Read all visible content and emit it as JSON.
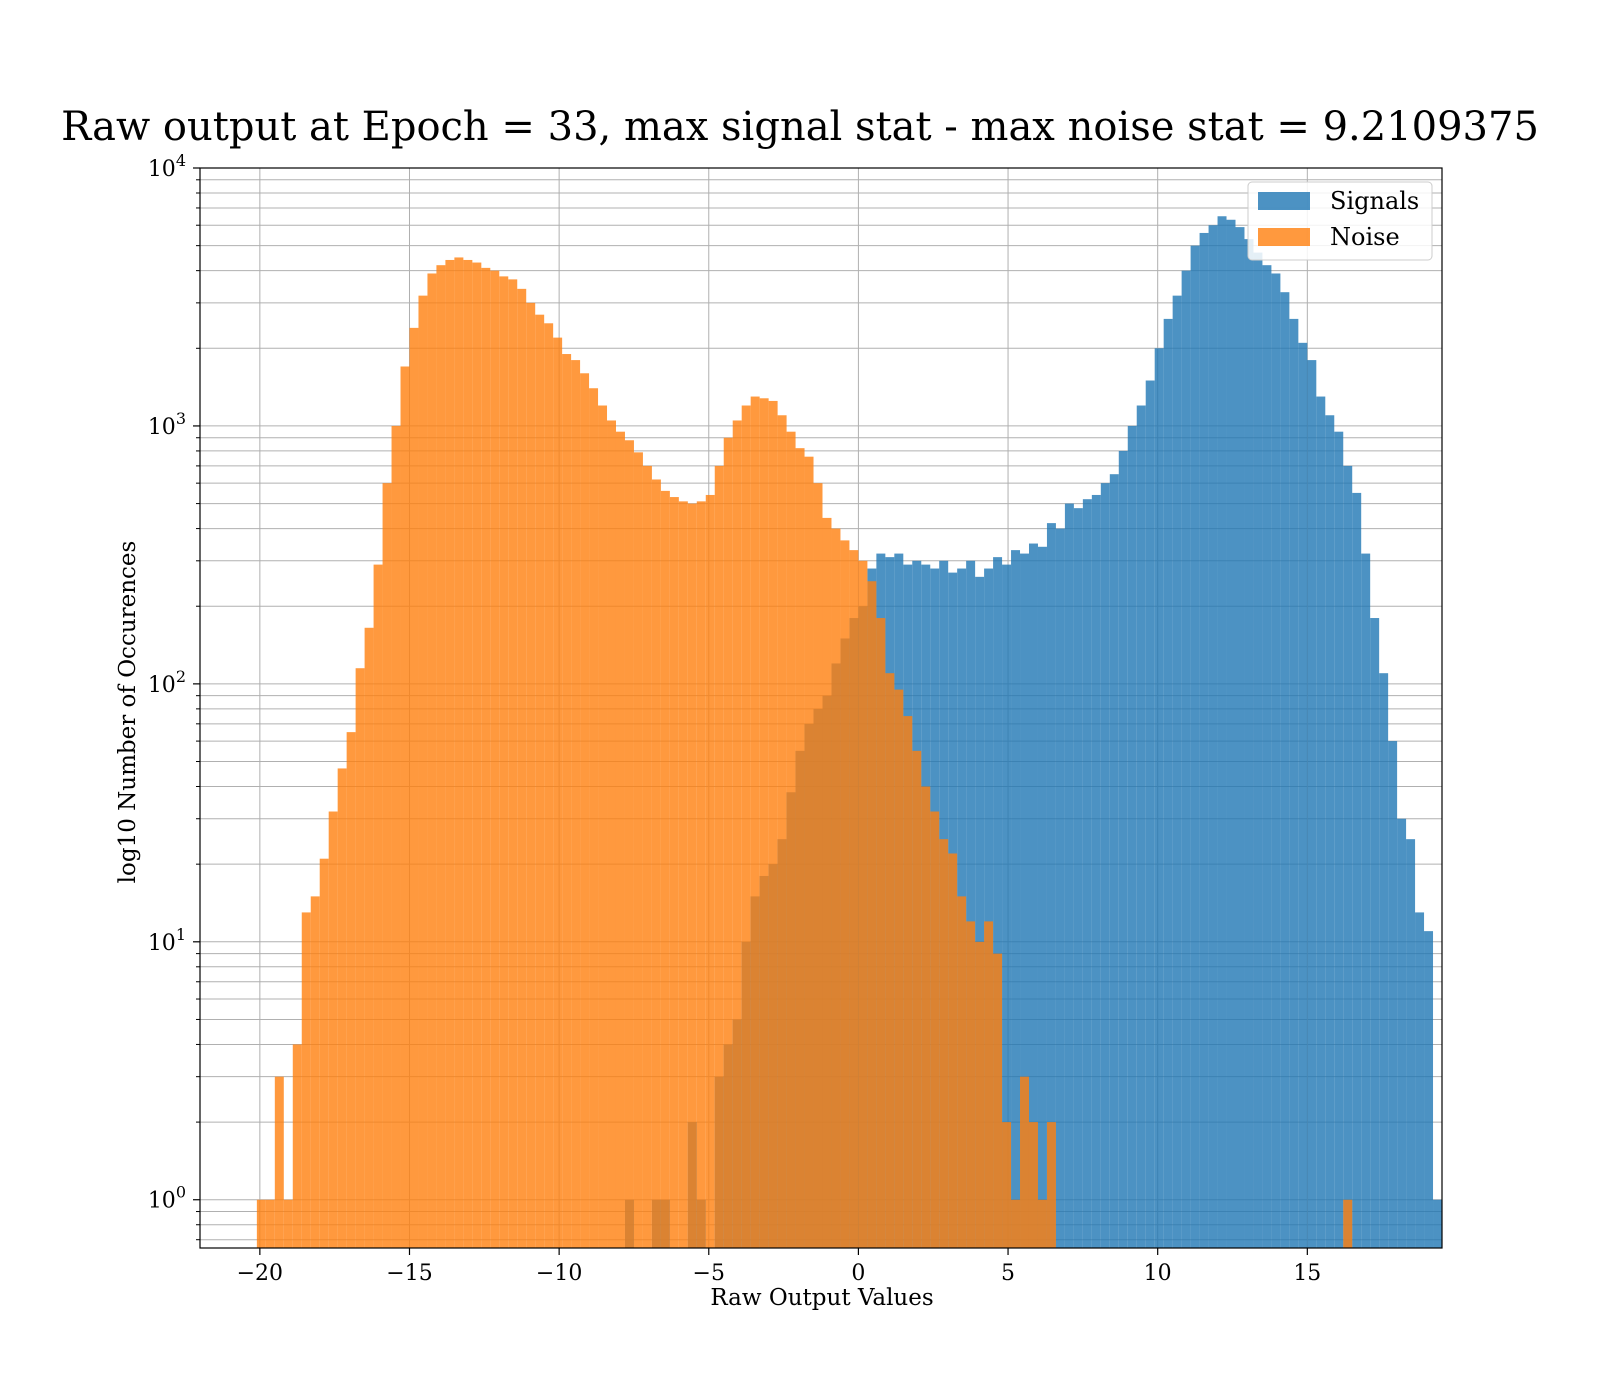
{
  "chart_data": {
    "type": "bar",
    "title": "Raw output at Epoch = 33, max signal stat - max noise stat = 9.2109375",
    "xlabel": "Raw Output Values",
    "ylabel": "log10 Number of Occurences",
    "xlim": [
      -22,
      19.5
    ],
    "ylim": [
      0.65,
      10000
    ],
    "yscale": "log",
    "grid": true,
    "legend": "top-right",
    "x_ticks": [
      -20,
      -15,
      -10,
      -5,
      0,
      5,
      10,
      15
    ],
    "x_tick_labels": [
      "−20",
      "−15",
      "−10",
      "−5",
      "0",
      "5",
      "10",
      "15"
    ],
    "y_ticks": [
      1,
      10,
      100,
      1000,
      10000
    ],
    "y_tick_bases": [
      "10",
      "10",
      "10",
      "10",
      "10"
    ],
    "y_tick_exponents": [
      "0",
      "1",
      "2",
      "3",
      "4"
    ],
    "series": [
      {
        "name": "Signals",
        "color": "#1f77b4",
        "bin_start": -7.8,
        "bin_width": 0.3,
        "counts": [
          1,
          0,
          0,
          1,
          1,
          0,
          0,
          2,
          1,
          0,
          3,
          4,
          5,
          10,
          15,
          18,
          20,
          25,
          38,
          55,
          70,
          80,
          90,
          120,
          150,
          180,
          200,
          280,
          320,
          310,
          320,
          290,
          300,
          290,
          280,
          300,
          270,
          280,
          300,
          260,
          280,
          310,
          290,
          330,
          320,
          350,
          340,
          420,
          400,
          500,
          480,
          520,
          540,
          600,
          650,
          800,
          1000,
          1200,
          1500,
          2000,
          2600,
          3200,
          4000,
          5000,
          5600,
          6000,
          6500,
          6300,
          5900,
          5300,
          4700,
          4200,
          3900,
          3300,
          2600,
          2100,
          1800,
          1300,
          1100,
          950,
          700,
          550,
          320,
          180,
          110,
          60,
          30,
          25,
          13,
          11,
          1
        ]
      },
      {
        "name": "Noise",
        "color": "#ff7f0e",
        "bin_start": -20.1,
        "bin_width": 0.3,
        "counts": [
          1,
          1,
          3,
          1,
          4,
          13,
          15,
          21,
          32,
          47,
          65,
          115,
          165,
          290,
          600,
          1000,
          1700,
          2400,
          3200,
          3900,
          4200,
          4400,
          4500,
          4400,
          4300,
          4100,
          4000,
          3800,
          3700,
          3400,
          3000,
          2700,
          2500,
          2200,
          1900,
          1800,
          1600,
          1400,
          1200,
          1050,
          950,
          880,
          790,
          700,
          620,
          560,
          530,
          510,
          500,
          510,
          540,
          700,
          900,
          1050,
          1200,
          1300,
          1280,
          1250,
          1100,
          950,
          820,
          760,
          600,
          440,
          400,
          360,
          330,
          300,
          250,
          180,
          110,
          95,
          75,
          55,
          40,
          32,
          25,
          22,
          15,
          12,
          10,
          12,
          9,
          2,
          1,
          3,
          2,
          1,
          2,
          0,
          0,
          0,
          0,
          0,
          0,
          0,
          0,
          0,
          0,
          0,
          0,
          0,
          0,
          0,
          0,
          0,
          0,
          0,
          0,
          0,
          0,
          0,
          0,
          0,
          0,
          0,
          0,
          0,
          0,
          0,
          0,
          1
        ]
      },
      {
        "name": "",
        "color": "#ff7f0e",
        "bin_start": -20.1,
        "bin_width": 0.3,
        "counts": []
      }
    ]
  }
}
